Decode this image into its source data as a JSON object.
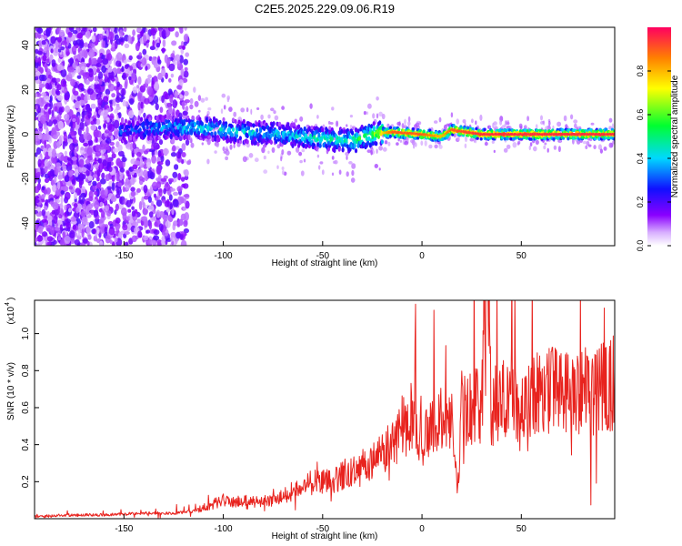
{
  "figure": {
    "title": "C2E5.2025.229.09.06.R19"
  },
  "chart_data": [
    {
      "type": "heatmap",
      "xlabel": "Height of straight line (km)",
      "ylabel": "Frequency (Hz)",
      "xlim": [
        -195,
        97
      ],
      "ylim": [
        -50,
        48
      ],
      "xticks": [
        -150,
        -100,
        -50,
        0,
        50
      ],
      "yticks": [
        -40,
        -20,
        0,
        20,
        40
      ],
      "grid": false,
      "colorbar": {
        "label": "Normalized spectral amplitude",
        "range": [
          0,
          1
        ],
        "ticks": [
          0.0,
          0.2,
          0.4,
          0.6,
          0.8
        ],
        "colormap": "rainbow (white-violet-blue-cyan-green-yellow-red)"
      },
      "ridge": [
        {
          "x": -150,
          "freq": 2,
          "amp": 0.3
        },
        {
          "x": -130,
          "freq": 3,
          "amp": 0.35
        },
        {
          "x": -110,
          "freq": 3,
          "amp": 0.45
        },
        {
          "x": -90,
          "freq": 1,
          "amp": 0.4
        },
        {
          "x": -70,
          "freq": 0,
          "amp": 0.4
        },
        {
          "x": -50,
          "freq": -2,
          "amp": 0.45
        },
        {
          "x": -35,
          "freq": -3,
          "amp": 0.5
        },
        {
          "x": -25,
          "freq": 0,
          "amp": 0.6
        },
        {
          "x": -15,
          "freq": 1,
          "amp": 0.9
        },
        {
          "x": 0,
          "freq": 0,
          "amp": 0.9
        },
        {
          "x": 10,
          "freq": -1,
          "amp": 0.8
        },
        {
          "x": 15,
          "freq": 2,
          "amp": 0.9
        },
        {
          "x": 30,
          "freq": 0,
          "amp": 0.95
        },
        {
          "x": 60,
          "freq": 0,
          "amp": 0.95
        },
        {
          "x": 95,
          "freq": 0,
          "amp": 0.95
        }
      ],
      "noise_region": {
        "x_from": -195,
        "x_to": -118
      }
    },
    {
      "type": "line",
      "xlabel": "Height of straight line (km)",
      "ylabel": "SNR (10 * v/v)",
      "multiplier_label": "(x10",
      "multiplier_exponent": "4",
      "xlim": [
        -195,
        97
      ],
      "ylim": [
        0,
        1.18
      ],
      "xticks": [
        -150,
        -100,
        -50,
        0,
        50
      ],
      "yticks": [
        0.2,
        0.4,
        0.6,
        0.8,
        1.0
      ],
      "grid": false,
      "series": [
        {
          "color": "#e8231e",
          "x": [
            -195,
            -180,
            -160,
            -140,
            -125,
            -115,
            -110,
            -105,
            -100,
            -95,
            -90,
            -85,
            -80,
            -75,
            -70,
            -65,
            -60,
            -55,
            -50,
            -45,
            -40,
            -35,
            -30,
            -25,
            -20,
            -15,
            -10,
            -5,
            0,
            5,
            10,
            15,
            18,
            20,
            25,
            30,
            33,
            35,
            40,
            45,
            50,
            55,
            60,
            65,
            70,
            75,
            80,
            85,
            90,
            97
          ],
          "y": [
            0.01,
            0.02,
            0.02,
            0.03,
            0.03,
            0.04,
            0.06,
            0.08,
            0.1,
            0.09,
            0.1,
            0.09,
            0.1,
            0.1,
            0.12,
            0.15,
            0.17,
            0.2,
            0.2,
            0.2,
            0.24,
            0.25,
            0.27,
            0.3,
            0.34,
            0.4,
            0.5,
            0.55,
            0.42,
            0.5,
            0.55,
            0.5,
            0.18,
            0.6,
            0.6,
            0.62,
            1.15,
            0.6,
            0.65,
            0.68,
            0.6,
            0.68,
            0.7,
            0.7,
            0.68,
            0.65,
            0.7,
            0.68,
            0.7,
            0.72
          ]
        }
      ]
    }
  ]
}
